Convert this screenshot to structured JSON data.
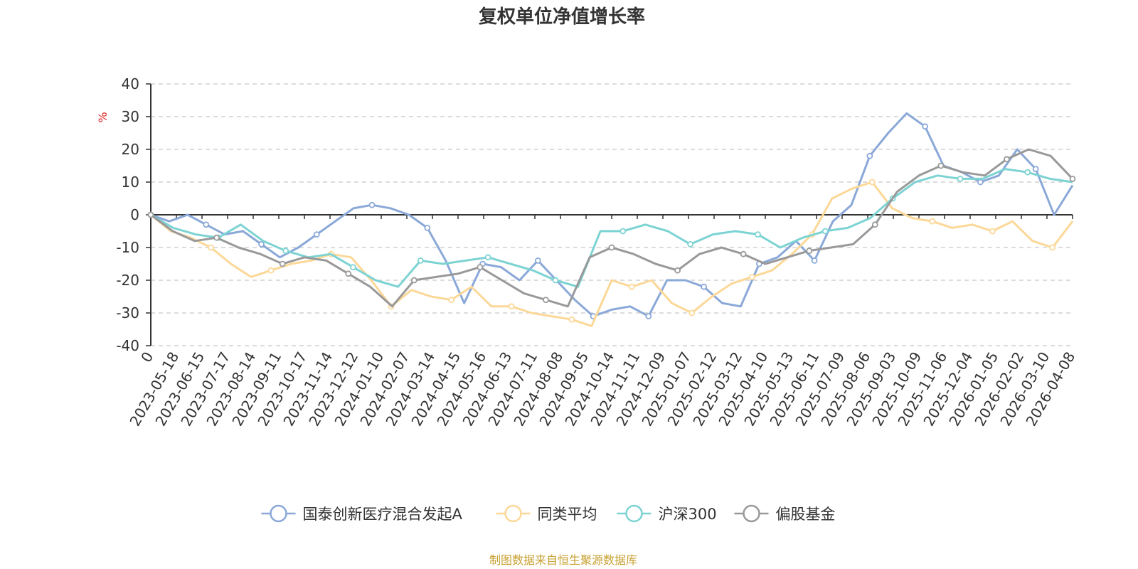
{
  "chart_data": {
    "type": "line",
    "title": "复权单位净值增长率",
    "ylabel": "%",
    "ylim": [
      -40,
      40
    ],
    "yticks": [
      40,
      30,
      20,
      10,
      0,
      -10,
      -20,
      -30,
      -40
    ],
    "x_ticks": [
      "0",
      "2023-05-18",
      "2023-06-15",
      "2023-07-17",
      "2023-08-14",
      "2023-09-11",
      "2023-10-17",
      "2023-11-14",
      "2023-12-12",
      "2024-01-10",
      "2024-02-07",
      "2024-03-14",
      "2024-04-15",
      "2024-05-16",
      "2024-06-13",
      "2024-07-11",
      "2024-08-08",
      "2024-09-05",
      "2024-10-14",
      "2024-11-11",
      "2024-12-09",
      "2025-01-07",
      "2025-02-12",
      "2025-03-12",
      "2025-04-10",
      "2025-05-13",
      "2025-06-11",
      "2025-07-09",
      "2025-08-06",
      "2025-09-03",
      "2025-10-09",
      "2025-11-06",
      "2025-12-04",
      "2026-01-05",
      "2026-02-02",
      "2026-03-10",
      "2026-04-08"
    ],
    "grid": true,
    "legend_position": "bottom",
    "series": [
      {
        "name": "国泰创新医疗混合发起A",
        "color": "#8aa8d8",
        "values": [
          0,
          -2,
          0,
          -3,
          -6,
          -5,
          -9,
          -13,
          -10,
          -6,
          -2,
          2,
          3,
          2,
          0,
          -4,
          -14,
          -27,
          -15,
          -16,
          -20,
          -14,
          -20,
          -26,
          -31,
          -29,
          -28,
          -31,
          -20,
          -20,
          -22,
          -27,
          -28,
          -15,
          -13,
          -8,
          -14,
          -2,
          3,
          18,
          25,
          31,
          27,
          15,
          13,
          10,
          12,
          20,
          14,
          0,
          9
        ]
      },
      {
        "name": "同类平均",
        "color": "#fcd898",
        "values": [
          0,
          -5,
          -7,
          -10,
          -15,
          -19,
          -17,
          -15,
          -14,
          -12,
          -13,
          -20,
          -28,
          -23,
          -25,
          -26,
          -22,
          -28,
          -28,
          -30,
          -31,
          -32,
          -34,
          -20,
          -22,
          -20,
          -27,
          -30,
          -25,
          -21,
          -19,
          -17,
          -12,
          -6,
          5,
          8,
          10,
          2,
          -1,
          -2,
          -4,
          -3,
          -5,
          -2,
          -8,
          -10,
          -2
        ]
      },
      {
        "name": "沪深300",
        "color": "#7dd3d3",
        "values": [
          0,
          -4,
          -6,
          -7,
          -3,
          -8,
          -11,
          -13,
          -12,
          -16,
          -20,
          -22,
          -14,
          -15,
          -14,
          -13,
          -15,
          -17,
          -20,
          -22,
          -5,
          -5,
          -3,
          -5,
          -9,
          -6,
          -5,
          -6,
          -10,
          -7,
          -5,
          -4,
          -1,
          5,
          10,
          12,
          11,
          11,
          14,
          13,
          11,
          10
        ]
      },
      {
        "name": "偏股基金",
        "color": "#999999",
        "values": [
          0,
          -5,
          -8,
          -7,
          -10,
          -12,
          -15,
          -13,
          -14,
          -18,
          -22,
          -28,
          -20,
          -19,
          -18,
          -16,
          -20,
          -24,
          -26,
          -28,
          -13,
          -10,
          -12,
          -15,
          -17,
          -12,
          -10,
          -12,
          -15,
          -13,
          -11,
          -10,
          -9,
          -3,
          7,
          12,
          15,
          13,
          12,
          17,
          20,
          18,
          11
        ]
      }
    ],
    "legend_entries": [
      "国泰创新医疗混合发起A",
      "同类平均",
      "沪深300",
      "偏股基金"
    ]
  },
  "source_note": "制图数据来自恒生聚源数据库"
}
